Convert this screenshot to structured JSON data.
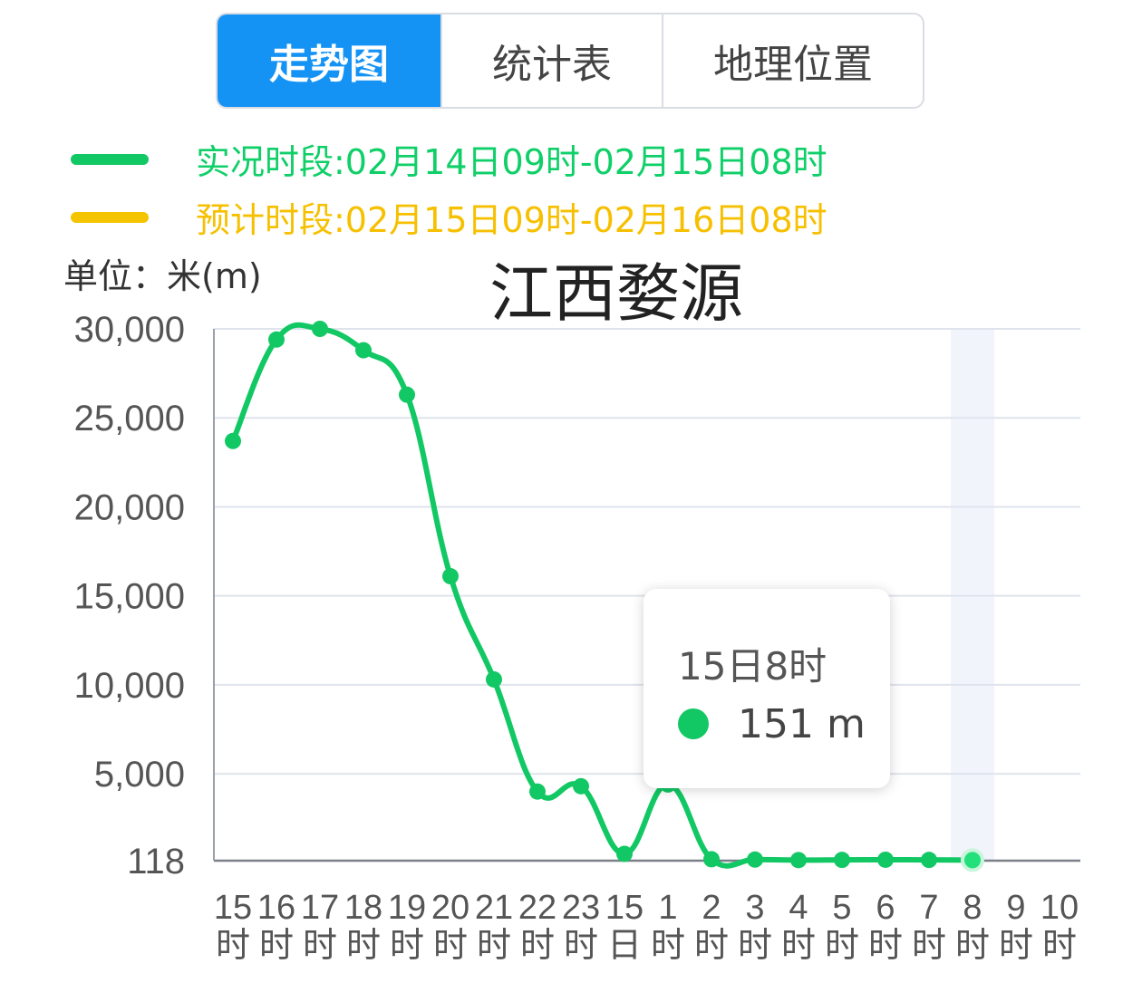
{
  "tabs": [
    {
      "label": "走势图",
      "active": true
    },
    {
      "label": "统计表",
      "active": false
    },
    {
      "label": "地理位置",
      "active": false
    }
  ],
  "legend": {
    "actual": {
      "label": "实况时段:02月14日09时-02月15日08时",
      "color": "#12c864"
    },
    "forecast": {
      "label": "预计时段:02月15日09时-02月16日08时",
      "color": "#f5c400"
    }
  },
  "unit_label": "单位：米(m)",
  "tooltip": {
    "title": "15日8时",
    "value": "151 m"
  },
  "chart_data": {
    "type": "line",
    "title": "江西婺源",
    "ylabel": "单位：米(m)",
    "y_ticks": [
      "118",
      "5,000",
      "10,000",
      "15,000",
      "20,000",
      "25,000",
      "30,000"
    ],
    "y_tick_values": [
      118,
      5000,
      10000,
      15000,
      20000,
      25000,
      30000
    ],
    "ylim": [
      118,
      30000
    ],
    "categories": [
      [
        "15",
        "时"
      ],
      [
        "16",
        "时"
      ],
      [
        "17",
        "时"
      ],
      [
        "18",
        "时"
      ],
      [
        "19",
        "时"
      ],
      [
        "20",
        "时"
      ],
      [
        "21",
        "时"
      ],
      [
        "22",
        "时"
      ],
      [
        "23",
        "时"
      ],
      [
        "15",
        "日"
      ],
      [
        "1",
        "时"
      ],
      [
        "2",
        "时"
      ],
      [
        "3",
        "时"
      ],
      [
        "4",
        "时"
      ],
      [
        "5",
        "时"
      ],
      [
        "6",
        "时"
      ],
      [
        "7",
        "时"
      ],
      [
        "8",
        "时"
      ],
      [
        "9",
        "时"
      ],
      [
        "10",
        "时"
      ]
    ],
    "series": [
      {
        "color": "#12c864",
        "values": [
          23700,
          29400,
          30000,
          28800,
          26300,
          16100,
          10300,
          4000,
          4300,
          500,
          4400,
          200,
          180,
          150,
          160,
          170,
          160,
          151,
          null,
          null
        ]
      }
    ],
    "highlight_index": 17,
    "grid": true
  }
}
